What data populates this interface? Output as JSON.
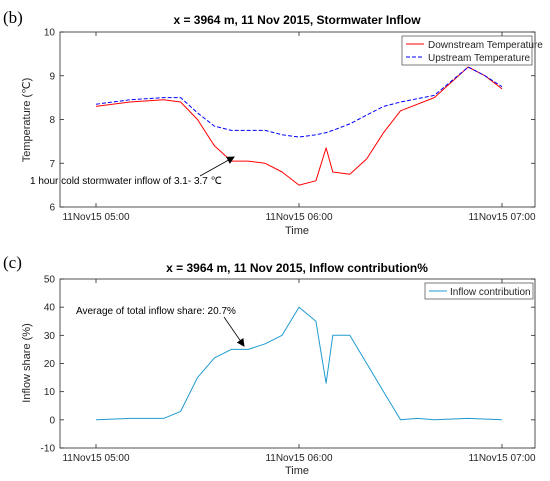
{
  "chart_data": [
    {
      "panel": "(b)",
      "type": "line",
      "title": "x = 3964 m, 11 Nov 2015, Stormwater Inflow",
      "xlabel": "Time",
      "ylabel": "Temperature (℃)",
      "xlim": [
        "11Nov15 05:00",
        "11Nov15 07:00"
      ],
      "xticks": [
        "11Nov15 05:00",
        "11Nov15 06:00",
        "11Nov15 07:00"
      ],
      "ylim": [
        6,
        10
      ],
      "yticks": [
        6,
        7,
        8,
        9,
        10
      ],
      "grid": false,
      "legend": "top-right",
      "x": [
        "05:00",
        "05:10",
        "05:20",
        "05:25",
        "05:30",
        "05:35",
        "05:40",
        "05:45",
        "05:50",
        "05:55",
        "06:00",
        "06:05",
        "06:08",
        "06:10",
        "06:15",
        "06:20",
        "06:25",
        "06:30",
        "06:40",
        "06:50",
        "06:55",
        "07:00"
      ],
      "series": [
        {
          "name": "Downstream Temperature",
          "color": "#ff0000",
          "dash": "solid",
          "values": [
            8.3,
            8.4,
            8.45,
            8.4,
            8.0,
            7.4,
            7.05,
            7.05,
            7.0,
            6.8,
            6.5,
            6.6,
            7.35,
            6.8,
            6.75,
            7.1,
            7.7,
            8.2,
            8.5,
            9.2,
            9.0,
            8.7
          ]
        },
        {
          "name": "Upstream Temperature",
          "color": "#0000ff",
          "dash": "dashed",
          "values": [
            8.35,
            8.45,
            8.5,
            8.5,
            8.15,
            7.85,
            7.75,
            7.75,
            7.75,
            7.65,
            7.6,
            7.65,
            7.7,
            7.75,
            7.9,
            8.1,
            8.3,
            8.4,
            8.55,
            9.2,
            9.0,
            8.75
          ]
        }
      ],
      "annotation": {
        "text": "1 hour cold stormwater inflow of 3.1- 3.7 ℃",
        "x": "05:35",
        "y": 7.1
      }
    },
    {
      "panel": "(c)",
      "type": "line",
      "title": "x = 3964 m, 11 Nov 2015, Inflow contribution%",
      "xlabel": "Time",
      "ylabel": "Inflow share (%)",
      "xlim": [
        "11Nov15 05:00",
        "11Nov15 07:00"
      ],
      "xticks": [
        "11Nov15 05:00",
        "11Nov15 06:00",
        "11Nov15 07:00"
      ],
      "ylim": [
        -10,
        50
      ],
      "yticks": [
        -10,
        0,
        10,
        20,
        30,
        40,
        50
      ],
      "grid": false,
      "legend": "top-right",
      "x": [
        "05:00",
        "05:10",
        "05:20",
        "05:25",
        "05:30",
        "05:35",
        "05:40",
        "05:45",
        "05:50",
        "05:55",
        "06:00",
        "06:05",
        "06:08",
        "06:10",
        "06:15",
        "06:20",
        "06:25",
        "06:30",
        "06:35",
        "06:40",
        "06:50",
        "07:00"
      ],
      "series": [
        {
          "name": "Inflow contribution",
          "color": "#1f9bd0",
          "dash": "solid",
          "values": [
            0,
            0.5,
            0.5,
            3,
            15,
            22,
            25,
            25,
            27,
            30,
            40,
            35,
            13,
            30,
            30,
            20,
            10,
            0,
            0.5,
            0,
            0.5,
            0
          ]
        }
      ],
      "annotation": {
        "text": "Average of total inflow share: 20.7%",
        "x": "05:43",
        "y": 24
      }
    }
  ]
}
